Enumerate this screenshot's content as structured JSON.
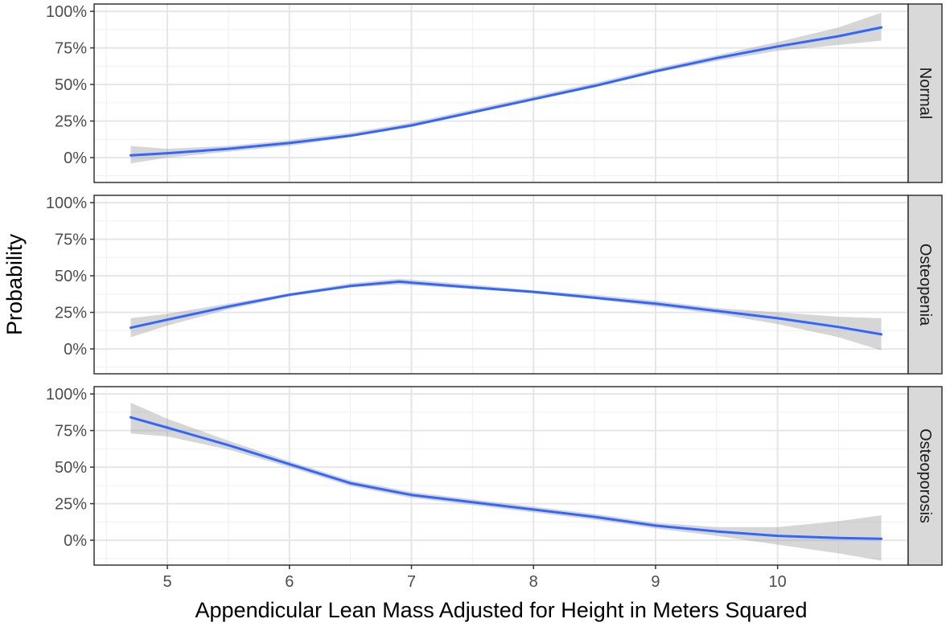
{
  "chart_data": {
    "type": "line",
    "xlabel": "Appendicular Lean Mass Adjusted for Height in Meters Squared",
    "ylabel": "Probability",
    "xlim": [
      4.4,
      11.07
    ],
    "ylim": [
      -0.17,
      1.05
    ],
    "x_ticks": [
      5,
      6,
      7,
      8,
      9,
      10
    ],
    "x_tick_labels": [
      "5",
      "6",
      "7",
      "8",
      "9",
      "10"
    ],
    "y_ticks": [
      0,
      0.25,
      0.5,
      0.75,
      1.0
    ],
    "y_tick_labels": [
      "0%",
      "25%",
      "50%",
      "75%",
      "100%"
    ],
    "grid": true,
    "line_color": "#3366ff",
    "ribbon_color": "#999999",
    "facets": [
      {
        "name": "Normal",
        "x": [
          4.7,
          5.0,
          5.5,
          6.0,
          6.5,
          7.0,
          7.5,
          8.0,
          8.5,
          9.0,
          9.5,
          10.0,
          10.5,
          10.85
        ],
        "y": [
          0.015,
          0.03,
          0.06,
          0.1,
          0.15,
          0.22,
          0.31,
          0.4,
          0.49,
          0.59,
          0.68,
          0.76,
          0.83,
          0.89
        ],
        "lower": [
          -0.04,
          0.0,
          0.04,
          0.08,
          0.14,
          0.21,
          0.3,
          0.39,
          0.48,
          0.58,
          0.66,
          0.73,
          0.77,
          0.8
        ],
        "upper": [
          0.08,
          0.06,
          0.08,
          0.12,
          0.17,
          0.24,
          0.33,
          0.42,
          0.51,
          0.61,
          0.7,
          0.79,
          0.89,
          0.99
        ]
      },
      {
        "name": "Osteopenia",
        "x": [
          4.7,
          5.0,
          5.5,
          6.0,
          6.5,
          6.9,
          7.5,
          8.0,
          8.5,
          9.0,
          9.5,
          10.0,
          10.5,
          10.85
        ],
        "y": [
          0.145,
          0.2,
          0.29,
          0.37,
          0.43,
          0.46,
          0.42,
          0.39,
          0.35,
          0.31,
          0.26,
          0.21,
          0.15,
          0.1
        ],
        "lower": [
          0.08,
          0.16,
          0.27,
          0.36,
          0.42,
          0.44,
          0.41,
          0.38,
          0.34,
          0.29,
          0.24,
          0.17,
          0.08,
          -0.01
        ],
        "upper": [
          0.21,
          0.24,
          0.31,
          0.38,
          0.45,
          0.48,
          0.44,
          0.4,
          0.37,
          0.33,
          0.28,
          0.25,
          0.22,
          0.21
        ]
      },
      {
        "name": "Osteoporosis",
        "x": [
          4.7,
          5.0,
          5.5,
          6.0,
          6.5,
          7.0,
          7.5,
          8.0,
          8.5,
          9.0,
          9.5,
          10.0,
          10.5,
          10.85
        ],
        "y": [
          0.84,
          0.77,
          0.65,
          0.52,
          0.39,
          0.31,
          0.26,
          0.21,
          0.16,
          0.1,
          0.06,
          0.03,
          0.015,
          0.01
        ],
        "lower": [
          0.73,
          0.71,
          0.62,
          0.5,
          0.37,
          0.29,
          0.24,
          0.19,
          0.14,
          0.08,
          0.03,
          -0.03,
          -0.09,
          -0.14
        ],
        "upper": [
          0.94,
          0.83,
          0.68,
          0.54,
          0.41,
          0.33,
          0.28,
          0.23,
          0.18,
          0.12,
          0.09,
          0.09,
          0.13,
          0.17
        ]
      }
    ]
  }
}
